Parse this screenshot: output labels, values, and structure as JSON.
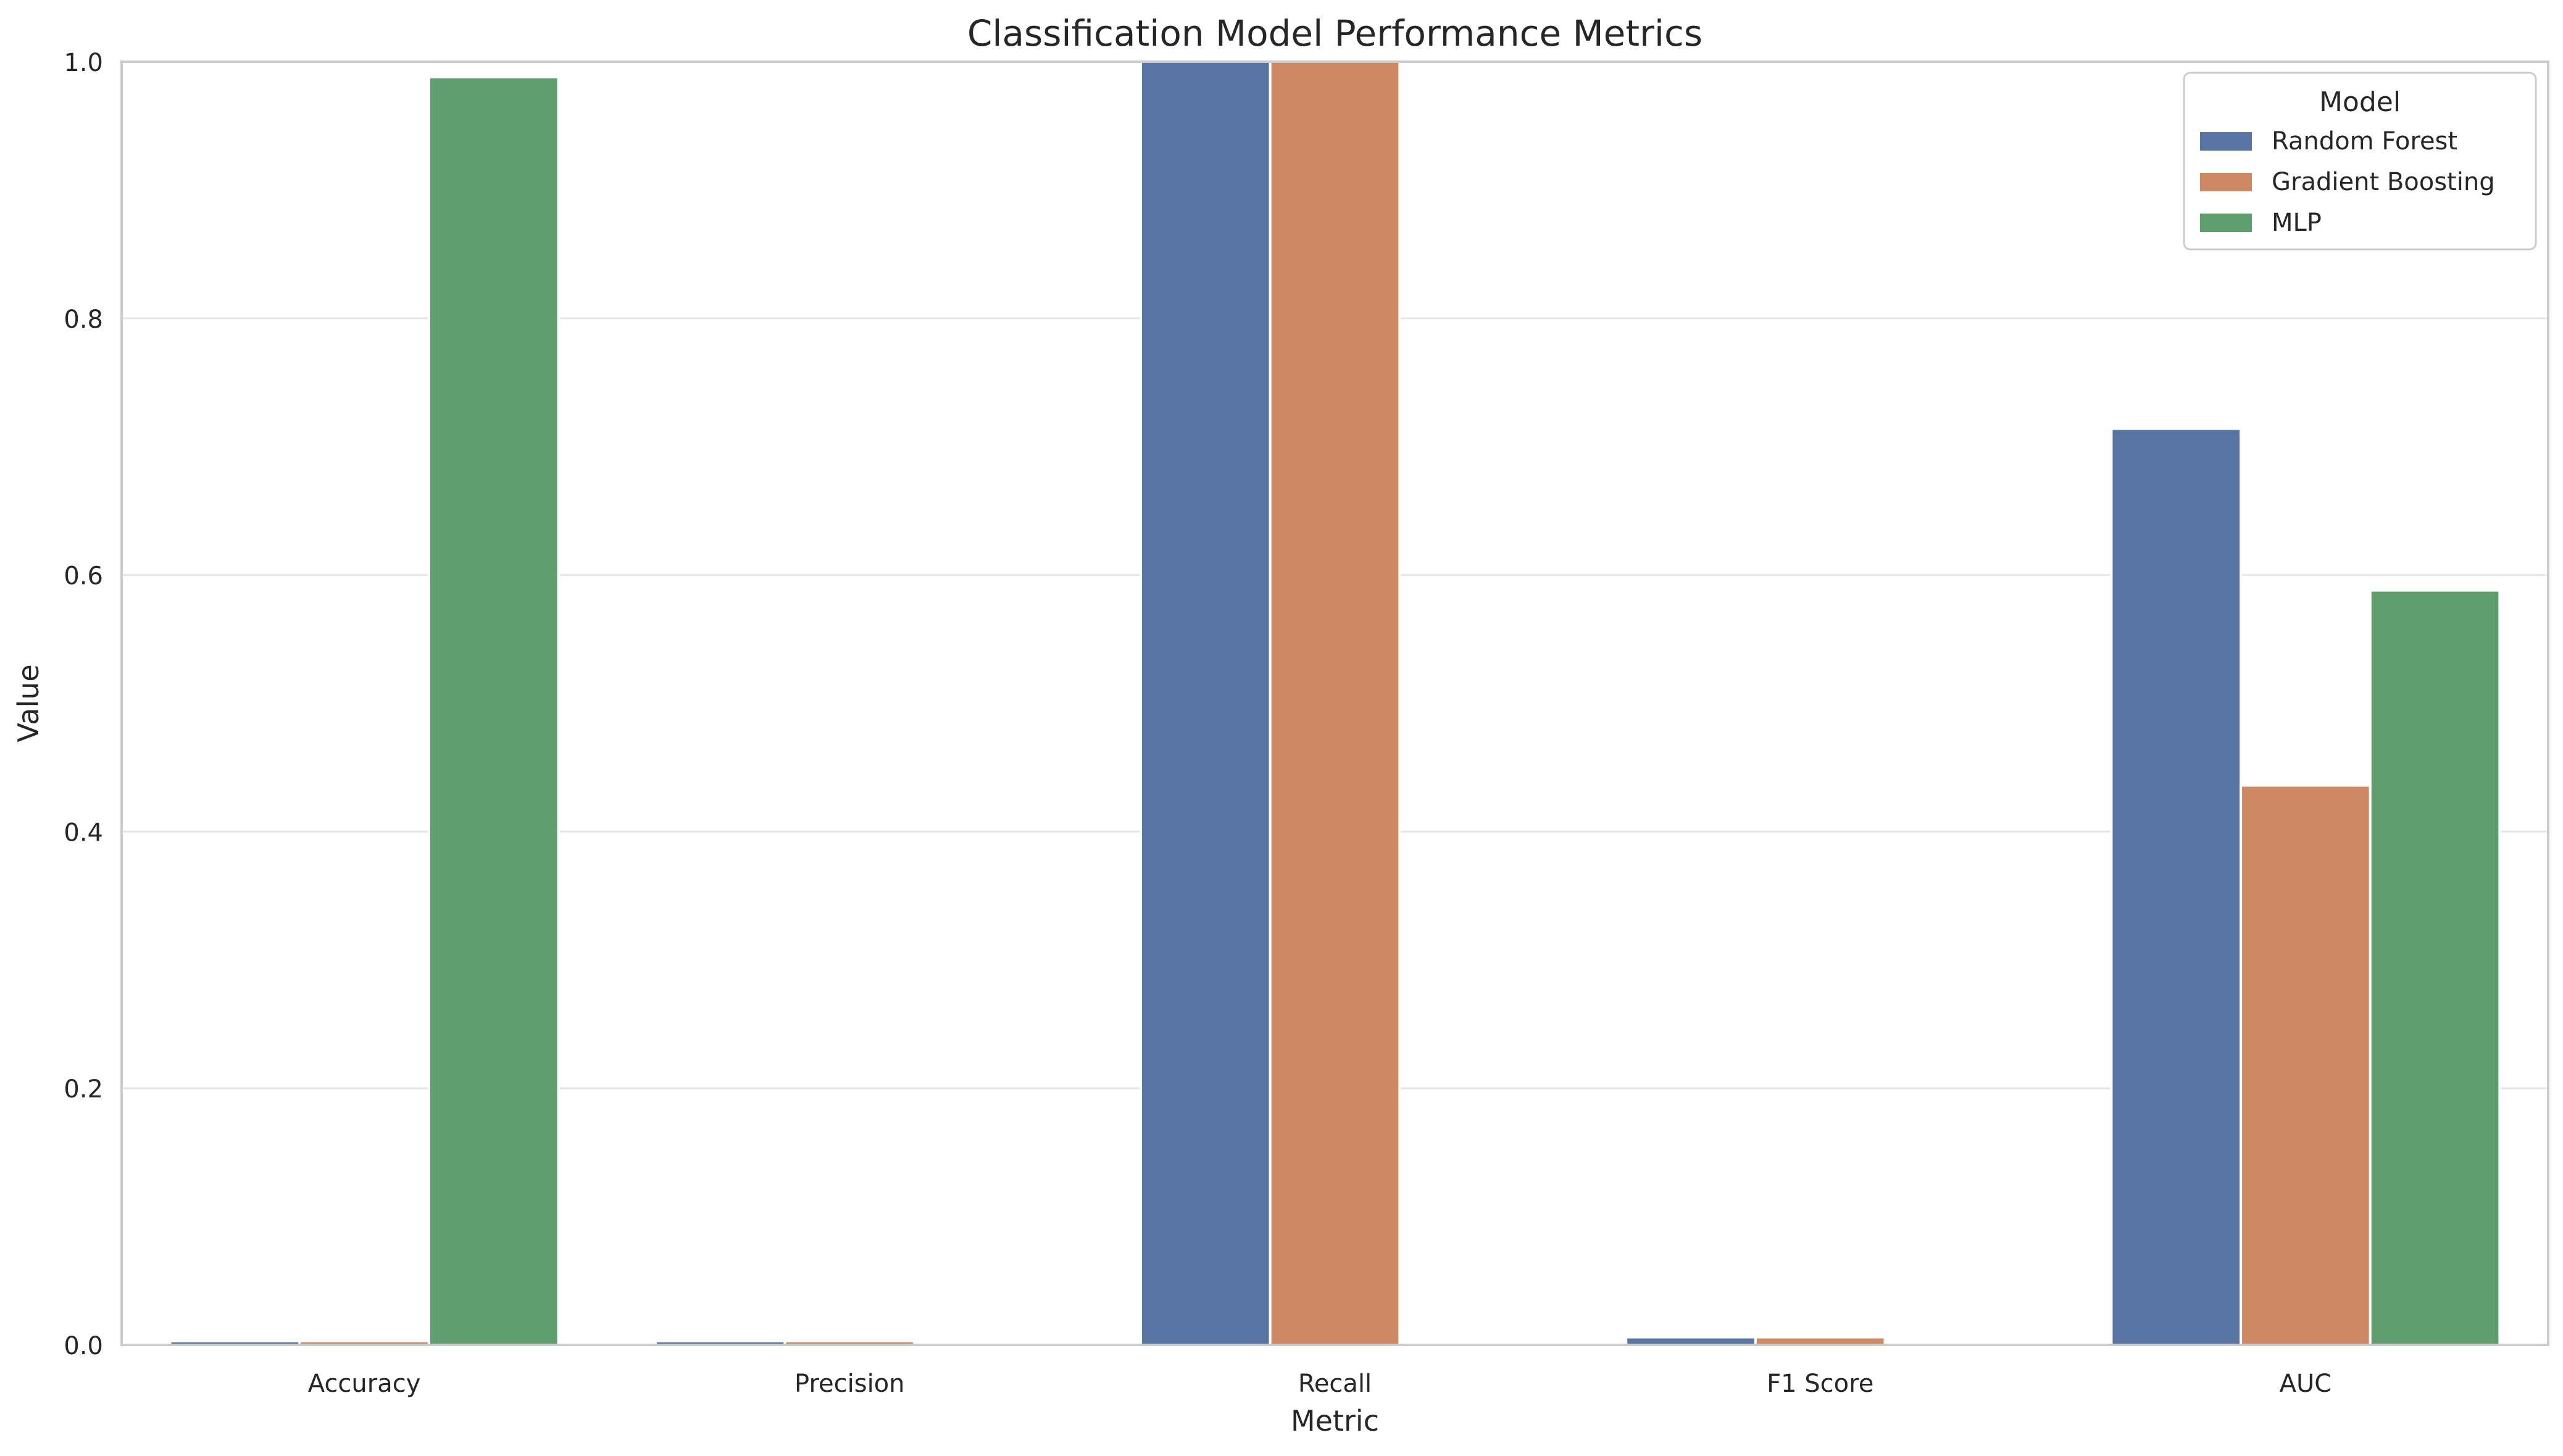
{
  "chart_data": {
    "type": "bar",
    "title": "Classification Model Performance Metrics",
    "xlabel": "Metric",
    "ylabel": "Value",
    "ylim": [
      0,
      1.0
    ],
    "yticks": [
      0.0,
      0.2,
      0.4,
      0.6,
      0.8,
      1.0
    ],
    "ytick_labels": [
      "0.0",
      "0.2",
      "0.4",
      "0.6",
      "0.8",
      "1.0"
    ],
    "categories": [
      "Accuracy",
      "Precision",
      "Recall",
      "F1 Score",
      "AUC"
    ],
    "grid": "horizontal",
    "legend": {
      "title": "Model",
      "placement": "top-right"
    },
    "series": [
      {
        "name": "Random Forest",
        "color": "#5975a4",
        "values": [
          0.003,
          0.003,
          1.0,
          0.006,
          0.714
        ]
      },
      {
        "name": "Gradient Boosting",
        "color": "#cc8963",
        "values": [
          0.003,
          0.003,
          1.0,
          0.006,
          0.436
        ]
      },
      {
        "name": "MLP",
        "color": "#5f9e6e",
        "values": [
          0.988,
          0.0,
          0.0,
          0.0,
          0.588
        ]
      }
    ]
  }
}
